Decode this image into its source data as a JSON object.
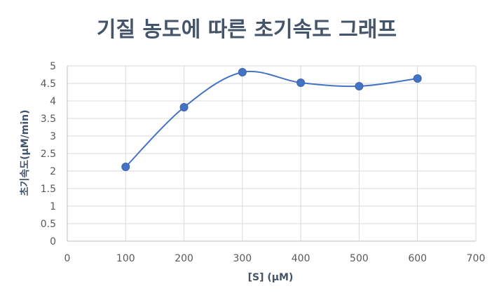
{
  "chart_data": {
    "type": "scatter",
    "title": "기질 농도에 따른 초기속도 그래프",
    "xlabel": "[S] (μM)",
    "ylabel": "초기속도(μM/min)",
    "xlim": [
      0,
      700
    ],
    "ylim": [
      0,
      5
    ],
    "x_ticks": [
      0,
      100,
      200,
      300,
      400,
      500,
      600,
      700
    ],
    "y_ticks": [
      "0",
      "0.5",
      "1",
      "1.5",
      "2",
      "2.5",
      "3",
      "3.5",
      "4",
      "4.5",
      "5"
    ],
    "grid": true,
    "smooth_line": true,
    "colors": {
      "series": "#4472c4",
      "grid": "#d9d9d9",
      "axis": "#bfbfbf",
      "title": "#44546a"
    },
    "series": [
      {
        "points": [
          {
            "x": 100,
            "y": 2.12
          },
          {
            "x": 200,
            "y": 3.82
          },
          {
            "x": 300,
            "y": 4.82
          },
          {
            "x": 400,
            "y": 4.52
          },
          {
            "x": 500,
            "y": 4.42
          },
          {
            "x": 600,
            "y": 4.64
          }
        ]
      }
    ]
  }
}
